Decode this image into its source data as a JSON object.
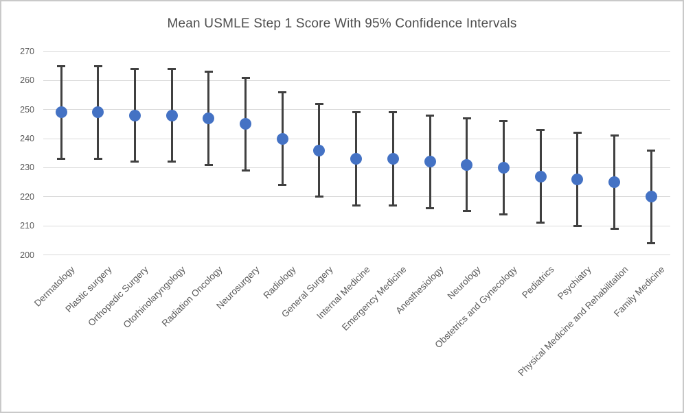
{
  "figure": {
    "title": "Mean USMLE Step 1 Score With 95% Confidence Intervals"
  },
  "chart_data": {
    "type": "scatter",
    "subtype": "mean-with-error-bars",
    "title": "Mean USMLE Step 1 Score With 95% Confidence Intervals",
    "xlabel": "",
    "ylabel": "",
    "ylim": [
      200,
      270
    ],
    "yticks": [
      200,
      210,
      220,
      230,
      240,
      250,
      260,
      270
    ],
    "grid": true,
    "legend_position": "none",
    "categories": [
      "Dermatology",
      "Plastic surgery",
      "Orthopedic Surgery",
      "Otorhinolaryngology",
      "Radiation Oncology",
      "Neurosurgery",
      "Radiology",
      "General Surgery",
      "Internal Medicine",
      "Emergency Medicine",
      "Anesthesiology",
      "Neurology",
      "Obstetrics and Gynecology",
      "Pediatrics",
      "Psychiatry",
      "Physical Medicine and Rehabilitation",
      "Family Medicine"
    ],
    "series": [
      {
        "name": "Mean USMLE Step 1 Score",
        "values": [
          249,
          249,
          248,
          248,
          247,
          245,
          240,
          236,
          233,
          233,
          232,
          231,
          230,
          227,
          226,
          225,
          220
        ],
        "ci_low": [
          233,
          233,
          232,
          232,
          231,
          229,
          224,
          220,
          217,
          217,
          216,
          215,
          214,
          211,
          210,
          209,
          204
        ],
        "ci_high": [
          265,
          265,
          264,
          264,
          263,
          261,
          256,
          252,
          249,
          249,
          248,
          247,
          246,
          243,
          242,
          241,
          236
        ]
      }
    ],
    "colors": {
      "marker": "#4472C4",
      "error_bar": "#404040",
      "gridline": "#D9D9D9",
      "axis_text": "#595959",
      "title_text": "#4e4e4e",
      "frame_border": "#c9c9c9",
      "background": "#ffffff"
    }
  }
}
